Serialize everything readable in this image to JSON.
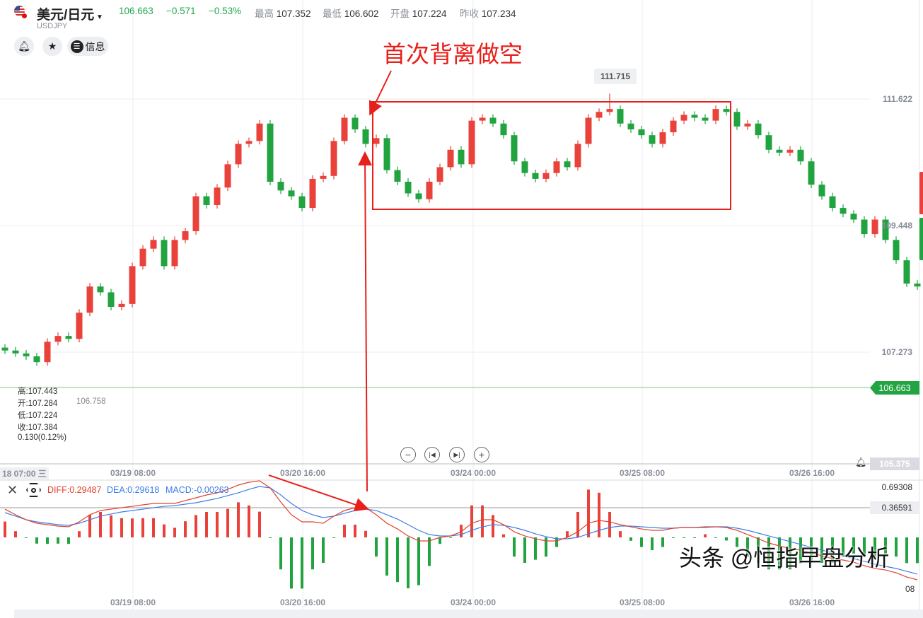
{
  "header": {
    "title": "美元/日元",
    "symbol": "USDJPY",
    "last": "106.663",
    "change": "−0.571",
    "change_pct": "−0.53%",
    "high_label": "最高",
    "high": "107.352",
    "low_label": "最低",
    "low": "106.602",
    "open_label": "开盘",
    "open": "107.224",
    "prev_label": "昨收",
    "prev": "107.234",
    "info_label": "信息"
  },
  "ohlc_panel": {
    "high": "高:107.443",
    "open": "开:107.284",
    "overlap": "106.758",
    "low": "低:107.224",
    "close": "收:107.384",
    "change": "0.130(0.12%)"
  },
  "annotation": {
    "text": "首次背离做空",
    "color": "#e8201c"
  },
  "peak_label": "111.715",
  "price_axis": [
    "111.622",
    "109.448",
    "107.273"
  ],
  "current_price": "106.663",
  "alert_price": "105.375",
  "time_axis": {
    "first": "18 07:00 三",
    "labels": [
      "03/19 08:00",
      "03/20 16:00",
      "03/24 00:00",
      "03/25 08:00",
      "03/26 16:00"
    ]
  },
  "macd_header": {
    "diff": "DIFF:0.29487",
    "dea": "DEA:0.29618",
    "macd": "MACD:-0.00263"
  },
  "macd_axis": [
    "0.69308",
    "0.36591"
  ],
  "macd_axis_extra": "08",
  "watermark": "头条 @恒指早盘分析",
  "colors": {
    "up": "#e8423b",
    "down": "#21a33f",
    "diff": "#e0412f",
    "dea": "#3d7ee8",
    "annotation": "#e8201c"
  },
  "icons": [
    "us-flag-icon",
    "caret-down-icon",
    "bell-icon",
    "star-icon",
    "info-icon",
    "zoom-out-icon",
    "skip-back-icon",
    "skip-forward-icon",
    "zoom-in-icon",
    "close-icon",
    "settings-icon"
  ],
  "chart_data": {
    "type": "candlestick",
    "interval": "2h",
    "ylim_ticks": [
      111.622,
      109.448,
      107.273
    ],
    "open": [
      107.35,
      107.3,
      107.25,
      107.2,
      107.1,
      107.45,
      107.55,
      107.5,
      107.95,
      108.4,
      108.3,
      108.05,
      108.1,
      108.75,
      109.05,
      109.2,
      108.75,
      109.2,
      109.35,
      109.95,
      109.8,
      110.1,
      110.5,
      110.85,
      110.9,
      111.2,
      110.2,
      110.05,
      109.95,
      109.75,
      110.25,
      110.3,
      110.9,
      111.3,
      111.1,
      110.85,
      110.95,
      110.4,
      110.2,
      110.0,
      109.9,
      110.2,
      110.45,
      110.75,
      110.5,
      111.25,
      111.3,
      111.2,
      111.0,
      110.55,
      110.35,
      110.25,
      110.35,
      110.55,
      110.45,
      110.85,
      111.3,
      111.4,
      111.45,
      111.2,
      111.1,
      111.0,
      110.85,
      111.05,
      111.25,
      111.35,
      111.3,
      111.25,
      111.45,
      111.4,
      111.15,
      111.2,
      111.0,
      110.75,
      110.7,
      110.75,
      110.55,
      110.15,
      109.95,
      109.75,
      109.65,
      109.55,
      109.3,
      109.55,
      109.2,
      108.85,
      108.45
    ],
    "high": [
      107.41,
      107.36,
      107.31,
      107.26,
      107.51,
      107.61,
      107.61,
      108.01,
      108.46,
      108.46,
      108.36,
      108.16,
      108.81,
      109.11,
      109.26,
      109.26,
      109.26,
      109.41,
      110.01,
      110.01,
      110.16,
      110.56,
      110.91,
      110.96,
      111.26,
      111.26,
      110.26,
      110.11,
      110.01,
      110.31,
      110.36,
      110.96,
      111.36,
      111.36,
      111.16,
      111.01,
      111.01,
      110.46,
      110.26,
      110.06,
      110.26,
      110.51,
      110.81,
      110.81,
      111.31,
      111.36,
      111.36,
      111.26,
      111.06,
      110.61,
      110.41,
      110.41,
      110.61,
      110.61,
      110.91,
      111.36,
      111.46,
      111.715,
      111.51,
      111.26,
      111.16,
      111.06,
      111.11,
      111.31,
      111.41,
      111.41,
      111.36,
      111.51,
      111.51,
      111.46,
      111.26,
      111.26,
      111.06,
      110.81,
      110.81,
      110.81,
      110.61,
      110.21,
      110.01,
      109.81,
      109.71,
      109.61,
      109.61,
      109.61,
      109.26,
      108.91,
      108.51
    ],
    "low": [
      107.24,
      107.19,
      107.14,
      107.04,
      107.04,
      107.39,
      107.44,
      107.44,
      107.89,
      108.24,
      107.99,
      107.99,
      108.04,
      108.69,
      108.99,
      108.69,
      108.69,
      109.14,
      109.29,
      109.74,
      109.74,
      110.04,
      110.44,
      110.79,
      110.84,
      110.14,
      109.99,
      109.89,
      109.69,
      109.69,
      110.19,
      110.24,
      110.84,
      111.04,
      110.79,
      110.79,
      110.34,
      110.14,
      109.94,
      109.84,
      109.84,
      110.14,
      110.39,
      110.44,
      110.44,
      111.19,
      111.14,
      110.94,
      110.49,
      110.29,
      110.19,
      110.19,
      110.29,
      110.39,
      110.39,
      110.79,
      111.24,
      111.34,
      111.14,
      111.04,
      110.94,
      110.79,
      110.79,
      110.99,
      111.19,
      111.24,
      111.19,
      111.19,
      111.34,
      111.09,
      111.09,
      110.94,
      110.69,
      110.64,
      110.64,
      110.49,
      110.09,
      109.89,
      109.69,
      109.59,
      109.49,
      109.24,
      109.24,
      109.14,
      108.79,
      108.39,
      108.34
    ],
    "close": [
      107.3,
      107.25,
      107.2,
      107.1,
      107.45,
      107.55,
      107.5,
      107.95,
      108.4,
      108.3,
      108.05,
      108.1,
      108.75,
      109.05,
      109.2,
      108.75,
      109.2,
      109.35,
      109.95,
      109.8,
      110.1,
      110.5,
      110.85,
      110.9,
      111.2,
      110.2,
      110.05,
      109.95,
      109.75,
      110.25,
      110.3,
      110.9,
      111.3,
      111.1,
      110.85,
      110.95,
      110.4,
      110.2,
      110.0,
      109.9,
      110.2,
      110.45,
      110.75,
      110.5,
      111.25,
      111.3,
      111.2,
      111.0,
      110.55,
      110.35,
      110.25,
      110.35,
      110.55,
      110.45,
      110.85,
      111.3,
      111.4,
      111.45,
      111.2,
      111.1,
      111.0,
      110.85,
      111.05,
      111.25,
      111.35,
      111.3,
      111.25,
      111.45,
      111.4,
      111.15,
      111.2,
      111.0,
      110.75,
      110.7,
      110.75,
      110.55,
      110.15,
      109.95,
      109.75,
      109.65,
      109.55,
      109.3,
      109.55,
      109.2,
      108.85,
      108.45,
      108.4
    ],
    "macd": {
      "diff": [
        0.343,
        0.253,
        0.174,
        0.118,
        0.095,
        0.073,
        0.061,
        0.14,
        0.253,
        0.321,
        0.343,
        0.366,
        0.388,
        0.411,
        0.434,
        0.434,
        0.434,
        0.479,
        0.524,
        0.569,
        0.603,
        0.659,
        0.727,
        0.772,
        0.795,
        0.682,
        0.456,
        0.253,
        0.14,
        0.14,
        0.118,
        0.231,
        0.321,
        0.366,
        0.366,
        0.253,
        0.118,
        0.027,
        -0.085,
        -0.164,
        -0.164,
        -0.108,
        -0.085,
        -0.018,
        0.118,
        0.174,
        0.174,
        0.095,
        -0.018,
        -0.085,
        -0.13,
        -0.164,
        -0.164,
        -0.108,
        -0.018,
        0.118,
        0.163,
        0.14,
        0.095,
        0.061,
        0.027,
        0.005,
        0.005,
        0.039,
        0.05,
        0.05,
        0.061,
        0.061,
        0.05,
        0.005,
        -0.063,
        -0.13,
        -0.198,
        -0.243,
        -0.288,
        -0.311,
        -0.356,
        -0.401,
        -0.446,
        -0.469,
        -0.503,
        -0.559,
        -0.604,
        -0.627,
        -0.672,
        -0.74,
        -0.785
      ],
      "dea": [
        0.287,
        0.231,
        0.174,
        0.14,
        0.118,
        0.095,
        0.084,
        0.118,
        0.174,
        0.231,
        0.265,
        0.298,
        0.321,
        0.343,
        0.366,
        0.388,
        0.4,
        0.422,
        0.445,
        0.479,
        0.513,
        0.558,
        0.603,
        0.659,
        0.704,
        0.682,
        0.569,
        0.434,
        0.321,
        0.253,
        0.208,
        0.231,
        0.276,
        0.321,
        0.343,
        0.321,
        0.253,
        0.185,
        0.095,
        0.005,
        -0.063,
        -0.085,
        -0.085,
        -0.063,
        0.005,
        0.061,
        0.095,
        0.084,
        0.05,
        0.005,
        -0.051,
        -0.096,
        -0.13,
        -0.13,
        -0.108,
        -0.051,
        0.005,
        0.05,
        0.073,
        0.073,
        0.061,
        0.05,
        0.039,
        0.039,
        0.05,
        0.05,
        0.05,
        0.061,
        0.061,
        0.039,
        0.005,
        -0.04,
        -0.085,
        -0.13,
        -0.175,
        -0.22,
        -0.266,
        -0.311,
        -0.356,
        -0.401,
        -0.446,
        -0.491,
        -0.536,
        -0.57,
        -0.604,
        -0.649,
        -0.694
      ]
    }
  }
}
